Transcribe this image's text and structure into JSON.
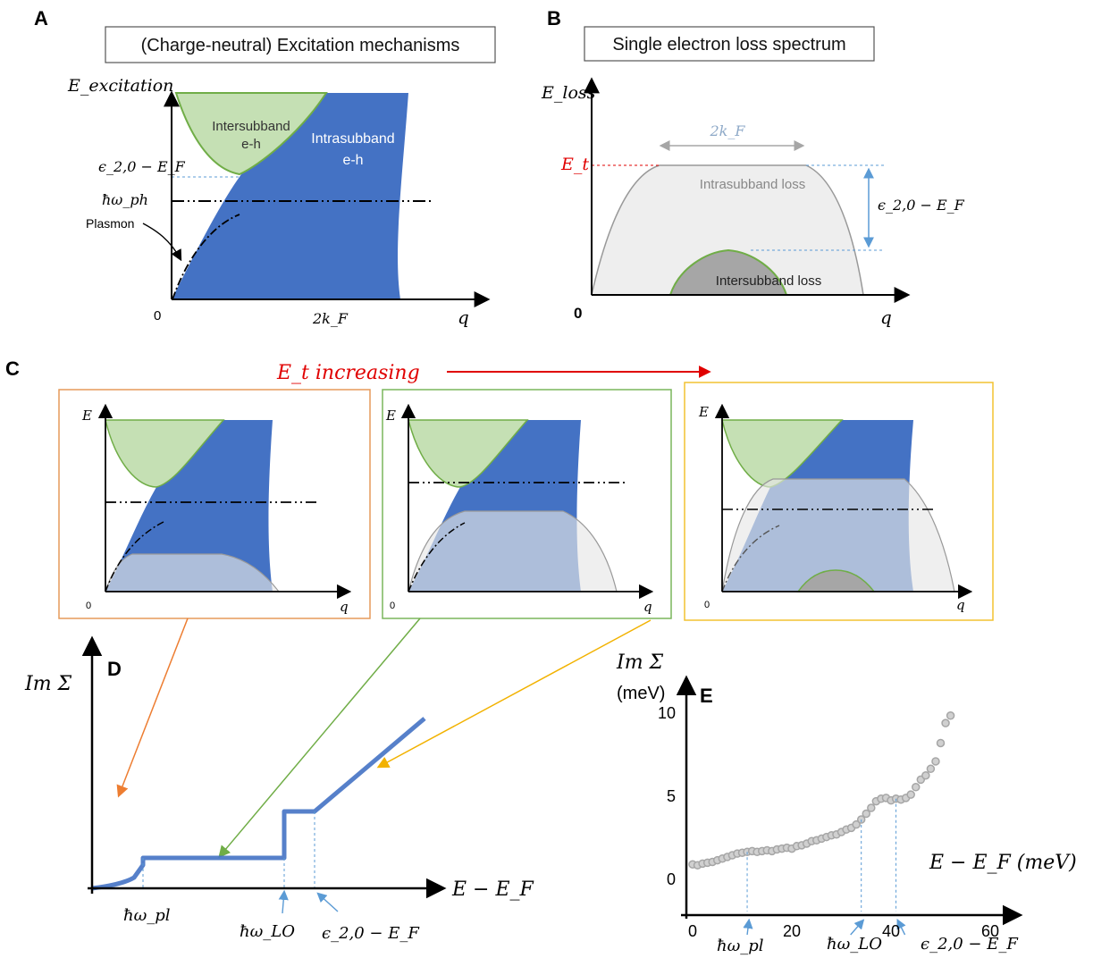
{
  "panels": {
    "a": {
      "letter": "A",
      "title": "(Charge-neutral) Excitation mechanisms",
      "y_axis": "E_excitation",
      "y_ticks": [
        "ϵ_2,0 − E_F",
        "ħω_ph"
      ],
      "x_ticks": [
        "0",
        "2k_F"
      ],
      "x_axis": "q",
      "region_intersubband": [
        "Intersubband",
        "e-h"
      ],
      "region_intrasubband": [
        "Intrasubband",
        "e-h"
      ],
      "plasmon_label": "Plasmon"
    },
    "b": {
      "letter": "B",
      "title": "Single electron loss spectrum",
      "y_axis": "E_loss",
      "et_label": "E_t",
      "width_label": "2k_F",
      "gap_label": "ϵ_2,0 − E_F",
      "intrasubband_label": "Intrasubband loss",
      "intersubband_label": "Intersubband loss",
      "origin": "0",
      "x_axis": "q"
    },
    "c": {
      "letter": "C",
      "trend_label": "E_t  increasing",
      "subpanels": [
        {
          "y_axis": "E",
          "origin": "0",
          "x_axis": "q",
          "frame_color": "#e59a5a"
        },
        {
          "y_axis": "E",
          "origin": "0",
          "x_axis": "q",
          "frame_color": "#7ab55c"
        },
        {
          "y_axis": "E",
          "origin": "0",
          "x_axis": "q",
          "frame_color": "#f2c230"
        }
      ]
    },
    "d": {
      "letter": "D",
      "y_axis": "Im Σ",
      "x_axis": "E − E_F",
      "markers": [
        "ħω_pl",
        "ħω_LO",
        "ϵ_2,0 − E_F"
      ]
    },
    "e": {
      "letter": "E",
      "y_axis": "Im Σ",
      "y_unit": "(meV)",
      "x_axis": "E − E_F (meV)",
      "markers": [
        "ħω_pl",
        "ħω_LO",
        "ϵ_2,0 − E_F"
      ]
    }
  },
  "colors": {
    "intrasubband": "#4472c4",
    "intersubband": "#c5e0b4",
    "intersubband_edge": "#70ad47",
    "loss_fill": "#e6e6e6",
    "et_red": "#e00000",
    "guide_blue": "#5b9bd5",
    "arrow_red": "#e00000",
    "data_grey": "#a6a6a6"
  },
  "chart_data": {
    "type": "scatter",
    "title": "",
    "xlabel": "E − E_F (meV)",
    "ylabel": "Im Σ (meV)",
    "xlim": [
      0,
      60
    ],
    "ylim": [
      0,
      10
    ],
    "xticks": [
      0,
      20,
      40,
      60
    ],
    "yticks": [
      0,
      5,
      10
    ],
    "grid": false,
    "series": [
      {
        "x": [
          0,
          1,
          2,
          3,
          4,
          5,
          6,
          7,
          8,
          9,
          10,
          11,
          12,
          13,
          14,
          15,
          16,
          17,
          18,
          19,
          20,
          21,
          22,
          23,
          24,
          25,
          26,
          27,
          28,
          29,
          30,
          31,
          32,
          33,
          34,
          35,
          36,
          37,
          38,
          39,
          40,
          41,
          42,
          43,
          44,
          45,
          46,
          47,
          48,
          49,
          50,
          51,
          52
        ],
        "y": [
          0.9,
          0.85,
          0.95,
          1.0,
          1.05,
          1.15,
          1.25,
          1.35,
          1.45,
          1.55,
          1.6,
          1.65,
          1.7,
          1.65,
          1.7,
          1.75,
          1.7,
          1.8,
          1.85,
          1.9,
          1.85,
          2.0,
          2.05,
          2.15,
          2.3,
          2.35,
          2.45,
          2.55,
          2.65,
          2.7,
          2.85,
          3.0,
          3.1,
          3.3,
          3.6,
          3.95,
          4.3,
          4.7,
          4.85,
          4.9,
          4.75,
          4.85,
          4.8,
          4.9,
          5.1,
          5.55,
          6.0,
          6.25,
          6.65,
          7.1,
          8.2,
          9.4,
          9.85
        ]
      }
    ],
    "marker_x": [
      11,
      34,
      41
    ]
  }
}
